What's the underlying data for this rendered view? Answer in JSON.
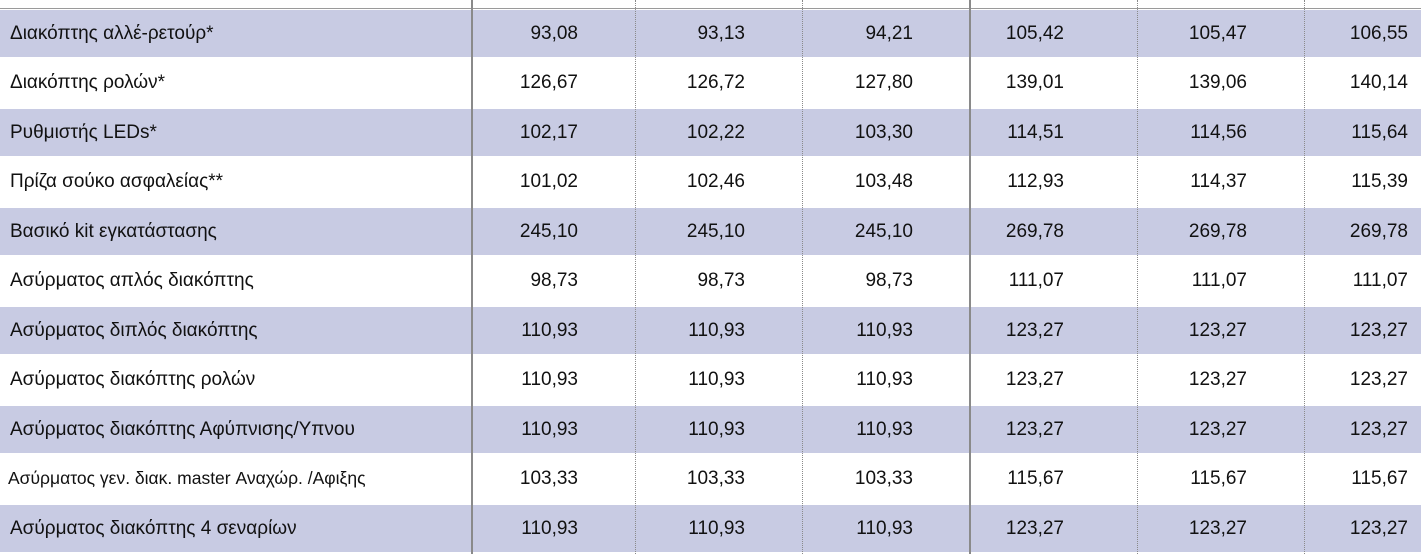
{
  "table": {
    "rows": [
      [
        "Διακόπτης αλλέ-ρετούρ*",
        "93,08",
        "93,13",
        "94,21",
        "105,42",
        "105,47",
        "106,55"
      ],
      [
        "Διακόπτης ρολών*",
        "126,67",
        "126,72",
        "127,80",
        "139,01",
        "139,06",
        "140,14"
      ],
      [
        "Ρυθμιστής LEDs*",
        "102,17",
        "102,22",
        "103,30",
        "114,51",
        "114,56",
        "115,64"
      ],
      [
        "Πρίζα σούκο ασφαλείας**",
        "101,02",
        "102,46",
        "103,48",
        "112,93",
        "114,37",
        "115,39"
      ],
      [
        "Βασικό kit εγκατάστασης",
        "245,10",
        "245,10",
        "245,10",
        "269,78",
        "269,78",
        "269,78"
      ],
      [
        "Ασύρματος απλός διακόπτης",
        "98,73",
        "98,73",
        "98,73",
        "111,07",
        "111,07",
        "111,07"
      ],
      [
        "Ασύρματος διπλός διακόπτης",
        "110,93",
        "110,93",
        "110,93",
        "123,27",
        "123,27",
        "123,27"
      ],
      [
        "Ασύρματος διακόπτης ρολών",
        "110,93",
        "110,93",
        "110,93",
        "123,27",
        "123,27",
        "123,27"
      ],
      [
        "Ασύρματος διακόπτης Αφύπνισης/Υπνου",
        "110,93",
        "110,93",
        "110,93",
        "123,27",
        "123,27",
        "123,27"
      ],
      [
        "Ασύρματος γεν. διακ. master Αναχώρ. /Αφιξης",
        "103,33",
        "103,33",
        "103,33",
        "115,67",
        "115,67",
        "115,67"
      ],
      [
        "Ασύρματος διακόπτης 4 σεναρίων",
        "110,93",
        "110,93",
        "110,93",
        "123,27",
        "123,27",
        "123,27"
      ]
    ]
  }
}
